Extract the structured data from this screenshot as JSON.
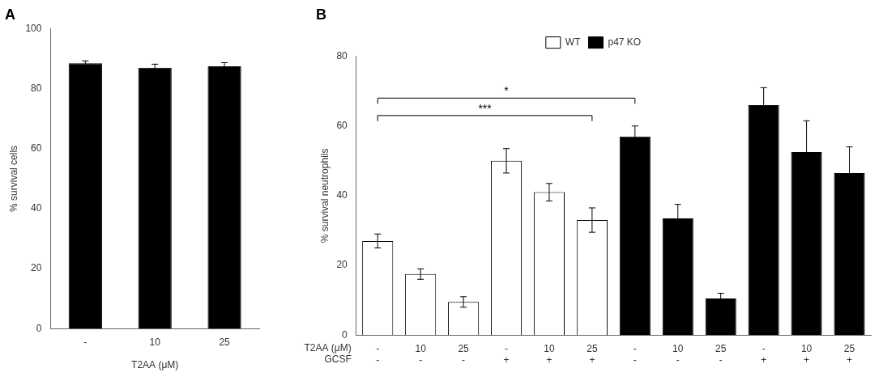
{
  "chart_data": [
    {
      "type": "bar",
      "title": "A",
      "categories": [
        "-",
        "10",
        "25"
      ],
      "values": [
        88.5,
        87.0,
        87.5
      ],
      "errors": [
        0.8,
        1.2,
        1.2
      ],
      "color": "#000000",
      "xlabel": "T2AA (μM)",
      "ylabel": "% survival cells",
      "ylim": [
        0,
        100
      ],
      "yticks": [
        0,
        20,
        40,
        60,
        80,
        100
      ],
      "grid": false
    },
    {
      "type": "bar",
      "title": "B",
      "categories": [
        [
          "-",
          "-"
        ],
        [
          "10",
          "-"
        ],
        [
          "25",
          "-"
        ],
        [
          "-",
          "+"
        ],
        [
          "10",
          "+"
        ],
        [
          "25",
          "+"
        ],
        [
          "-",
          "-"
        ],
        [
          "10",
          "-"
        ],
        [
          "25",
          "-"
        ],
        [
          "-",
          "+"
        ],
        [
          "10",
          "+"
        ],
        [
          "25",
          "+"
        ]
      ],
      "category_rows": [
        "T2AA (μM)",
        "GCSF"
      ],
      "series": [
        {
          "name": "WT",
          "color": "#ffffff",
          "values": [
            27.0,
            17.5,
            9.5,
            50.0,
            41.0,
            33.0,
            null,
            null,
            null,
            null,
            null,
            null
          ],
          "errors": [
            2.0,
            1.5,
            1.5,
            3.5,
            2.5,
            3.5,
            null,
            null,
            null,
            null,
            null,
            null
          ]
        },
        {
          "name": "p47 KO",
          "color": "#000000",
          "values": [
            null,
            null,
            null,
            null,
            null,
            null,
            57.0,
            33.5,
            10.5,
            66.0,
            52.5,
            46.5
          ],
          "errors": [
            null,
            null,
            null,
            null,
            null,
            null,
            3.0,
            4.0,
            1.5,
            5.0,
            9.0,
            7.5
          ]
        }
      ],
      "ylabel": "% survival neutrophils",
      "ylim": [
        0,
        80
      ],
      "yticks": [
        0,
        20,
        40,
        60,
        80
      ],
      "grid": false,
      "legend": "top",
      "annotations": [
        {
          "text": "***",
          "y": 63,
          "from": 0,
          "to": 5
        },
        {
          "text": "*",
          "y": 68,
          "from": 0,
          "to": 6
        }
      ]
    }
  ]
}
